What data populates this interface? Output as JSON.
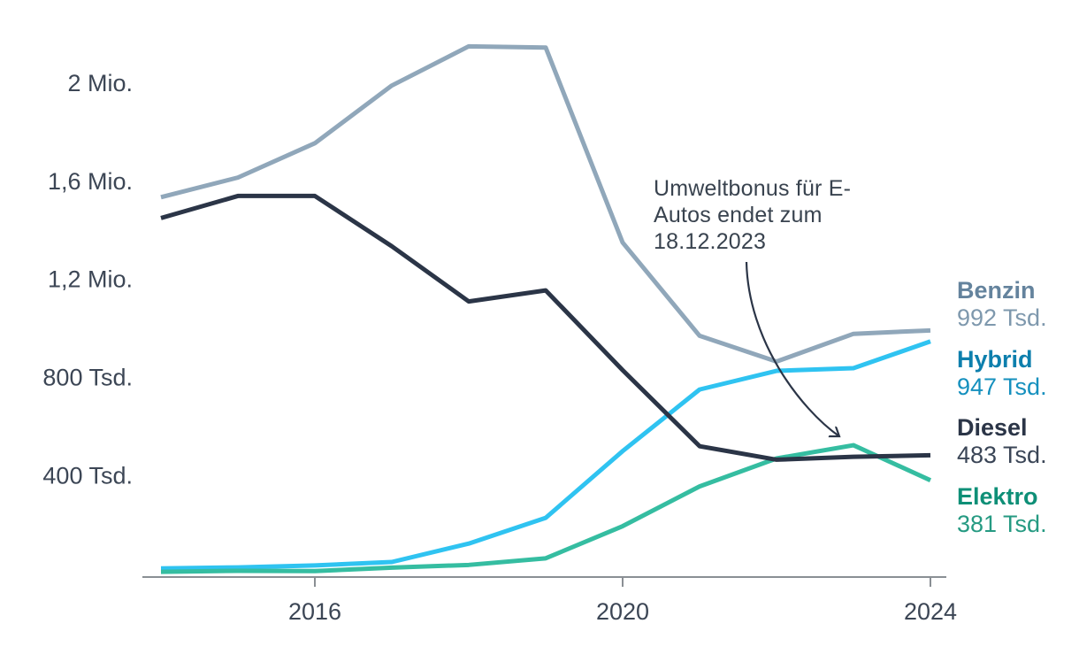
{
  "chart_data": {
    "type": "line",
    "title": "",
    "xlabel": "",
    "ylabel": "",
    "unit": "Tsd.",
    "x": [
      2014,
      2015,
      2016,
      2017,
      2018,
      2019,
      2020,
      2021,
      2022,
      2023,
      2024
    ],
    "xlim": [
      2014,
      2024
    ],
    "ylim": [
      0,
      2200
    ],
    "grid": false,
    "legend_position": "right",
    "series": [
      {
        "name": "Benzin",
        "color": "#90A7BA",
        "values": [
          1535,
          1615,
          1755,
          1990,
          2150,
          2145,
          1350,
          970,
          865,
          978,
          992
        ]
      },
      {
        "name": "Hybrid",
        "color": "#2FC3F1",
        "values": [
          22,
          26,
          34,
          48,
          123,
          228,
          500,
          751,
          827,
          838,
          947
        ]
      },
      {
        "name": "Elektro",
        "color": "#35BDA1",
        "values": [
          8,
          12,
          11,
          25,
          36,
          63,
          194,
          356,
          470,
          524,
          381
        ]
      },
      {
        "name": "Diesel",
        "color": "#2B3547",
        "values": [
          1450,
          1540,
          1540,
          1335,
          1110,
          1155,
          830,
          520,
          465,
          477,
          483
        ]
      }
    ],
    "y_ticks": [
      {
        "label": "2 Mio.",
        "value": 2000
      },
      {
        "label": "1,6 Mio.",
        "value": 1600
      },
      {
        "label": "1,2 Mio.",
        "value": 1200
      },
      {
        "label": "800 Tsd.",
        "value": 800
      },
      {
        "label": "400 Tsd.",
        "value": 400
      }
    ],
    "x_ticks": [
      {
        "label": "2016",
        "value": 2016
      },
      {
        "label": "2020",
        "value": 2020
      },
      {
        "label": "2024",
        "value": 2024
      }
    ],
    "annotation": {
      "lines": [
        "Umweltbonus für E-",
        "Autos endet zum",
        "18.12.2023"
      ],
      "arrow_target": {
        "year": 2023,
        "series": "Elektro"
      }
    }
  },
  "legend": {
    "entries": [
      {
        "name": "Benzin",
        "value_label": "992 Tsd.",
        "name_color": "#64839D",
        "value_color": "#7E98AD"
      },
      {
        "name": "Hybrid",
        "value_label": "947 Tsd.",
        "name_color": "#0D7FAD",
        "value_color": "#1590BE"
      },
      {
        "name": "Diesel",
        "value_label": "483 Tsd.",
        "name_color": "#2B3547",
        "value_color": "#3A4556"
      },
      {
        "name": "Elektro",
        "value_label": "381 Tsd.",
        "name_color": "#0E8F77",
        "value_color": "#259A82"
      }
    ]
  },
  "colors": {
    "axis": "#8A8F94",
    "tick_label": "#3C4655",
    "annotation_text": "#39434F",
    "arrow": "#2B3547",
    "background": "#FFFFFF"
  }
}
